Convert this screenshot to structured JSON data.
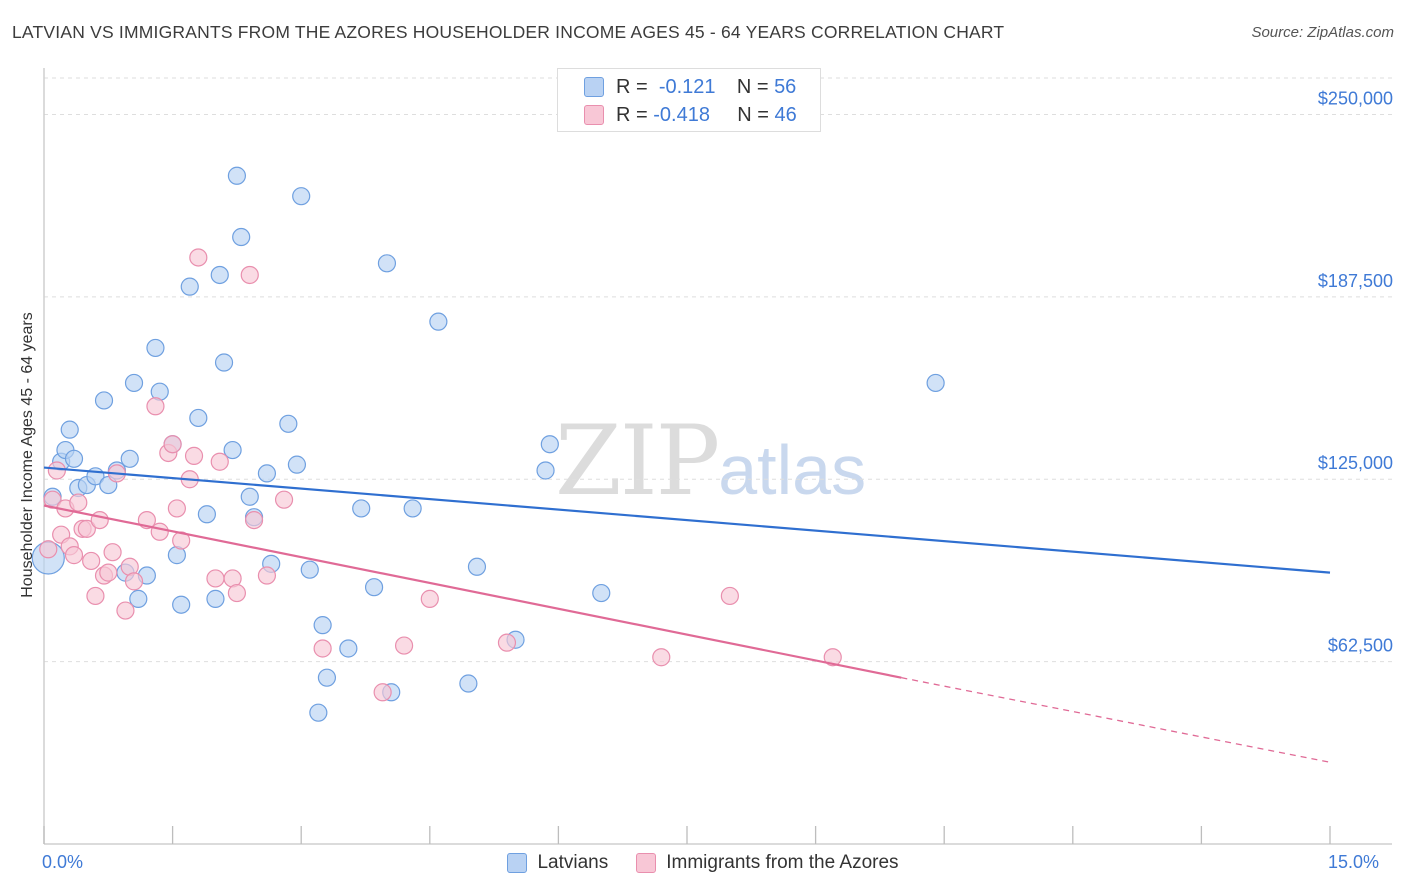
{
  "title": "LATVIAN VS IMMIGRANTS FROM THE AZORES HOUSEHOLDER INCOME AGES 45 - 64 YEARS CORRELATION CHART",
  "source": "Source: ZipAtlas.com",
  "watermark": {
    "zip": "ZIP",
    "atlas": "atlas"
  },
  "legend_top": [
    {
      "r_label": "R =",
      "r_value": "-0.121",
      "n_label": "N =",
      "n_value": "56",
      "color": "#a9c8ef"
    },
    {
      "r_label": "R =",
      "r_value": "-0.418",
      "n_label": "N =",
      "n_value": "46",
      "color": "#f5b5c8"
    }
  ],
  "chart_data": {
    "type": "scatter",
    "ylabel": "Householder Income Ages 45 - 64 years",
    "xlabel": "",
    "xlim": [
      0,
      15
    ],
    "ylim": [
      0,
      262500
    ],
    "x_tick_labels": [
      "0.0%",
      "15.0%"
    ],
    "y_ticks": [
      {
        "value": 62500,
        "label": "$62,500"
      },
      {
        "value": 125000,
        "label": "$125,000"
      },
      {
        "value": 187500,
        "label": "$187,500"
      },
      {
        "value": 250000,
        "label": "$250,000"
      }
    ],
    "series": [
      {
        "name": "Latvians",
        "color": "#6fa0e0",
        "fill": "#b9d2f3",
        "trend": {
          "x0": 0.0,
          "y0": 129000,
          "x1": 15.0,
          "y1": 93000
        },
        "points": [
          [
            0.05,
            98000
          ],
          [
            0.1,
            119000
          ],
          [
            0.2,
            131000
          ],
          [
            0.25,
            135000
          ],
          [
            0.3,
            142000
          ],
          [
            0.35,
            132000
          ],
          [
            0.4,
            122000
          ],
          [
            0.5,
            123000
          ],
          [
            0.6,
            126000
          ],
          [
            0.7,
            152000
          ],
          [
            0.75,
            123000
          ],
          [
            0.85,
            128000
          ],
          [
            0.95,
            93000
          ],
          [
            1.0,
            132000
          ],
          [
            1.05,
            158000
          ],
          [
            1.1,
            84000
          ],
          [
            1.2,
            92000
          ],
          [
            1.3,
            170000
          ],
          [
            1.35,
            155000
          ],
          [
            1.5,
            137000
          ],
          [
            1.55,
            99000
          ],
          [
            1.6,
            82000
          ],
          [
            1.7,
            191000
          ],
          [
            1.8,
            146000
          ],
          [
            1.9,
            113000
          ],
          [
            2.0,
            84000
          ],
          [
            2.05,
            195000
          ],
          [
            2.1,
            165000
          ],
          [
            2.2,
            135000
          ],
          [
            2.25,
            229000
          ],
          [
            2.3,
            208000
          ],
          [
            2.4,
            119000
          ],
          [
            2.45,
            112000
          ],
          [
            2.6,
            127000
          ],
          [
            2.65,
            96000
          ],
          [
            2.85,
            144000
          ],
          [
            2.95,
            130000
          ],
          [
            3.0,
            222000
          ],
          [
            3.1,
            94000
          ],
          [
            3.2,
            45000
          ],
          [
            3.25,
            75000
          ],
          [
            3.3,
            57000
          ],
          [
            3.55,
            67000
          ],
          [
            3.7,
            115000
          ],
          [
            3.85,
            88000
          ],
          [
            4.0,
            199000
          ],
          [
            4.05,
            52000
          ],
          [
            4.3,
            115000
          ],
          [
            4.6,
            179000
          ],
          [
            4.95,
            55000
          ],
          [
            5.05,
            95000
          ],
          [
            5.5,
            70000
          ],
          [
            5.85,
            128000
          ],
          [
            5.9,
            137000
          ],
          [
            6.5,
            86000
          ],
          [
            10.4,
            158000
          ]
        ]
      },
      {
        "name": "Immigrants from the Azores",
        "color": "#e98fae",
        "fill": "#f8c7d6",
        "trend": {
          "x0": 0.0,
          "y0": 116000,
          "x1": 10.0,
          "y1": 57000,
          "dashed_to_x": 15.0,
          "dashed_to_y": 28000
        },
        "points": [
          [
            0.05,
            101000
          ],
          [
            0.1,
            118000
          ],
          [
            0.15,
            128000
          ],
          [
            0.2,
            106000
          ],
          [
            0.25,
            115000
          ],
          [
            0.3,
            102000
          ],
          [
            0.35,
            99000
          ],
          [
            0.4,
            117000
          ],
          [
            0.45,
            108000
          ],
          [
            0.5,
            108000
          ],
          [
            0.6,
            85000
          ],
          [
            0.65,
            111000
          ],
          [
            0.7,
            92000
          ],
          [
            0.75,
            93000
          ],
          [
            0.8,
            100000
          ],
          [
            0.85,
            127000
          ],
          [
            0.95,
            80000
          ],
          [
            1.0,
            95000
          ],
          [
            1.05,
            90000
          ],
          [
            1.2,
            111000
          ],
          [
            1.3,
            150000
          ],
          [
            1.35,
            107000
          ],
          [
            1.45,
            134000
          ],
          [
            1.5,
            137000
          ],
          [
            1.55,
            115000
          ],
          [
            1.6,
            104000
          ],
          [
            1.7,
            125000
          ],
          [
            1.75,
            133000
          ],
          [
            1.8,
            201000
          ],
          [
            2.0,
            91000
          ],
          [
            2.05,
            131000
          ],
          [
            2.2,
            91000
          ],
          [
            2.25,
            86000
          ],
          [
            2.4,
            195000
          ],
          [
            2.45,
            111000
          ],
          [
            2.6,
            92000
          ],
          [
            2.8,
            118000
          ],
          [
            3.25,
            67000
          ],
          [
            3.95,
            52000
          ],
          [
            4.2,
            68000
          ],
          [
            4.5,
            84000
          ],
          [
            5.4,
            69000
          ],
          [
            7.2,
            64000
          ],
          [
            8.0,
            85000
          ],
          [
            9.2,
            64000
          ],
          [
            0.55,
            97000
          ]
        ]
      }
    ]
  },
  "x_axis": {
    "left_label": "0.0%",
    "right_label": "15.0%"
  }
}
